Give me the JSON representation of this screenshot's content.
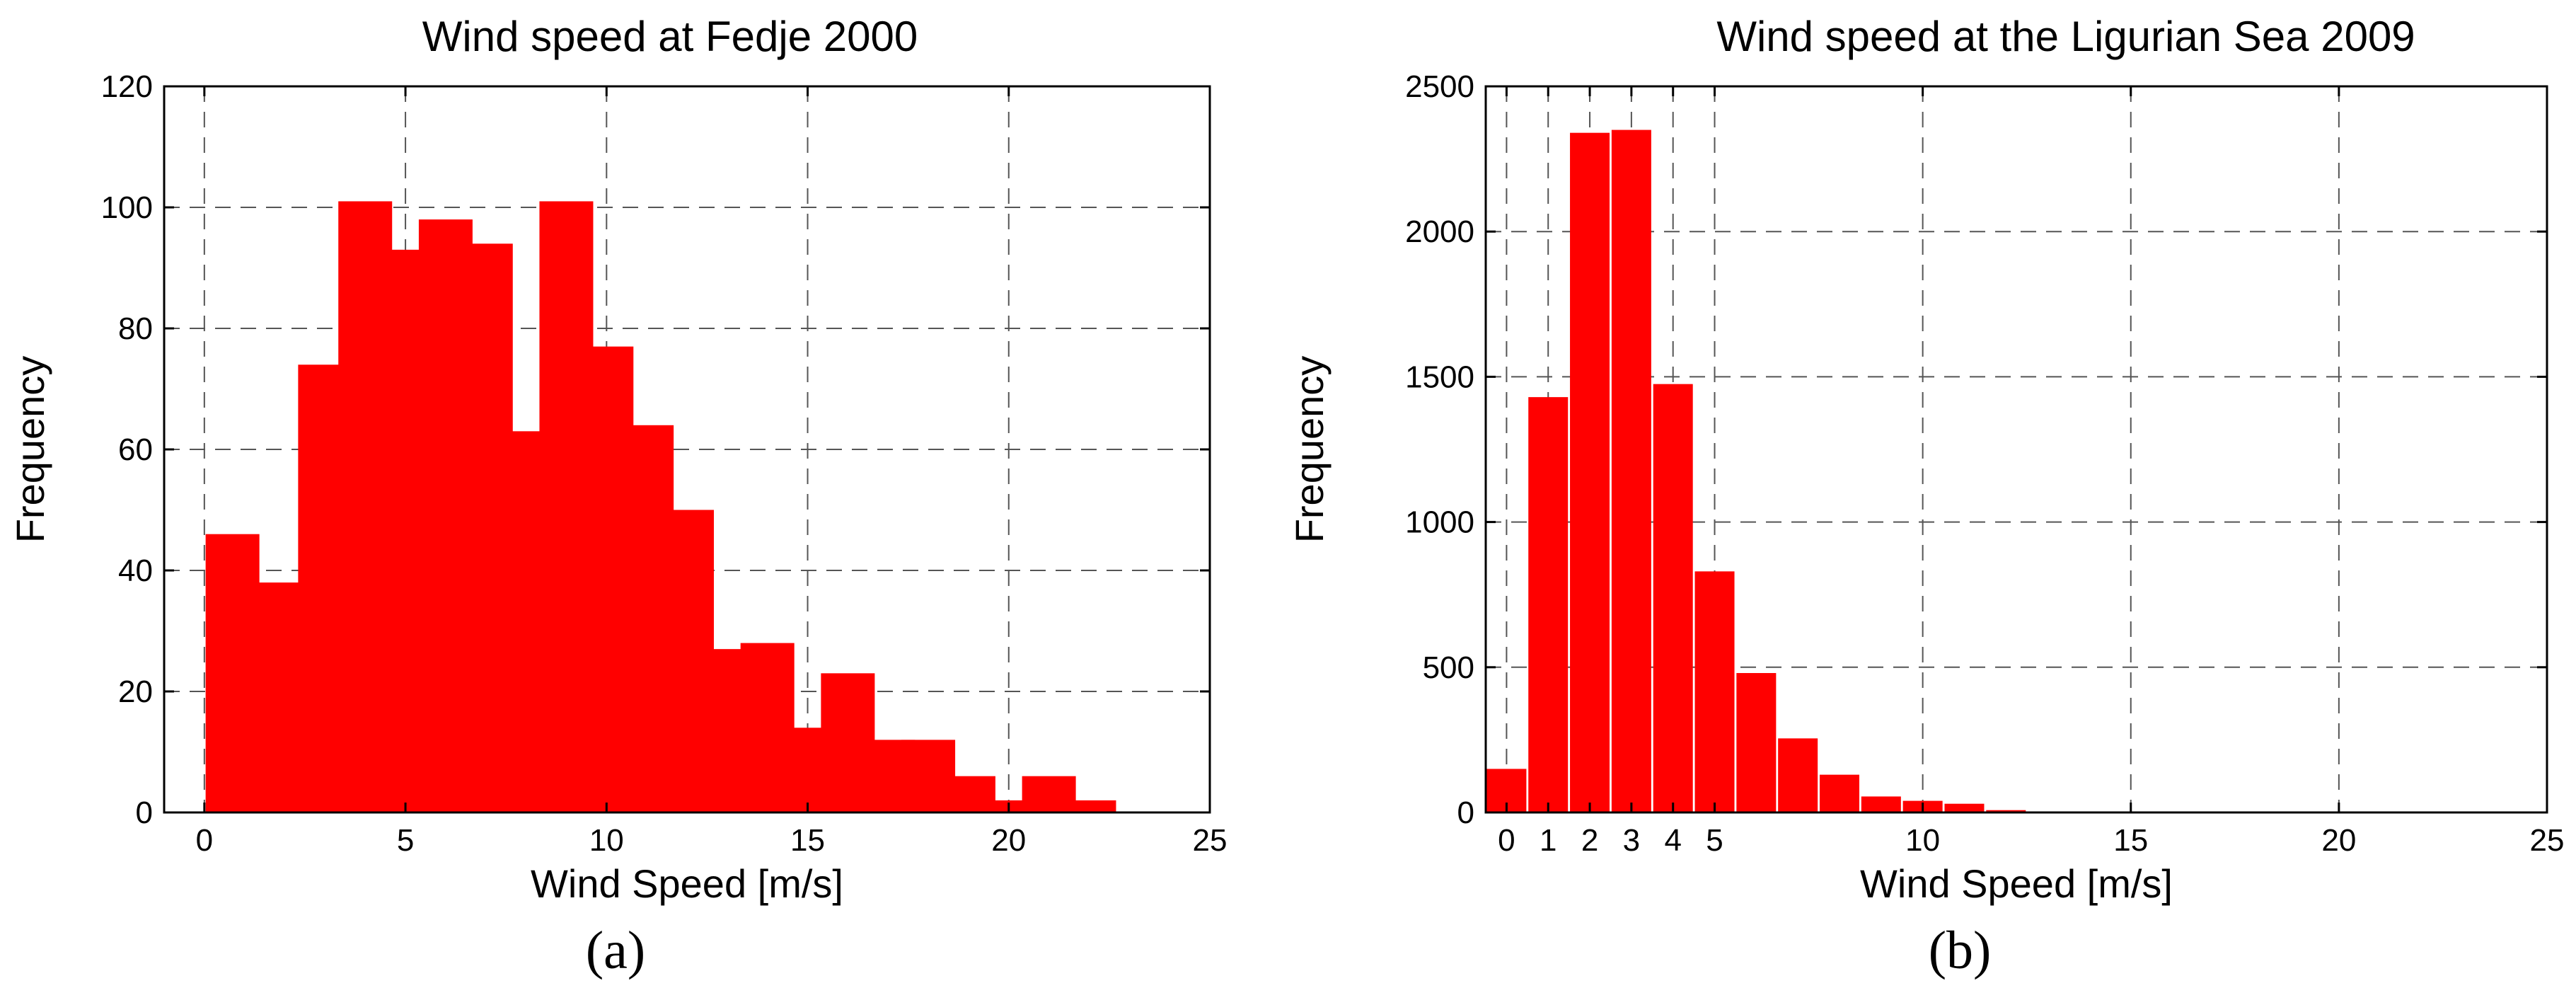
{
  "chart_data": [
    {
      "type": "bar",
      "panel_label": "(a)",
      "title": "Wind speed  at Fedje 2000",
      "xlabel": "Wind Speed [m/s]",
      "ylabel": "Frequency",
      "xlim": [
        -1,
        25
      ],
      "ylim": [
        0,
        120
      ],
      "xticks": [
        0,
        5,
        10,
        15,
        20,
        25
      ],
      "yticks": [
        0,
        20,
        40,
        60,
        80,
        100,
        120
      ],
      "grid": true,
      "bar_color": "#ff0000",
      "x": [
        0.7,
        2,
        3,
        4,
        5,
        6,
        7,
        8,
        9,
        10,
        11,
        12,
        13,
        14,
        15,
        16,
        17,
        18,
        19,
        20,
        21,
        22
      ],
      "values": [
        46,
        38,
        74,
        101,
        93,
        98,
        94,
        63,
        101,
        77,
        64,
        50,
        27,
        28,
        14,
        23,
        12,
        12,
        6,
        2,
        6,
        2
      ]
    },
    {
      "type": "bar",
      "panel_label": "(b)",
      "title": "Wind speed at the Ligurian Sea 2009",
      "xlabel": "Wind Speed [m/s]",
      "ylabel": "Frequency",
      "xlim": [
        -0.5,
        25
      ],
      "ylim": [
        0,
        2500
      ],
      "xticks": [
        0,
        1,
        2,
        3,
        4,
        5,
        10,
        15,
        20,
        25
      ],
      "yticks": [
        0,
        500,
        1000,
        1500,
        2000,
        2500
      ],
      "grid_x": [
        0,
        1,
        2,
        3,
        4,
        5,
        10,
        15,
        20
      ],
      "grid": true,
      "bar_color": "#ff0000",
      "x": [
        0,
        1,
        2,
        3,
        4,
        5,
        6,
        7,
        8,
        9,
        10,
        11,
        12
      ],
      "values": [
        150,
        1430,
        2340,
        2350,
        1475,
        830,
        480,
        255,
        130,
        55,
        40,
        30,
        8
      ]
    }
  ]
}
